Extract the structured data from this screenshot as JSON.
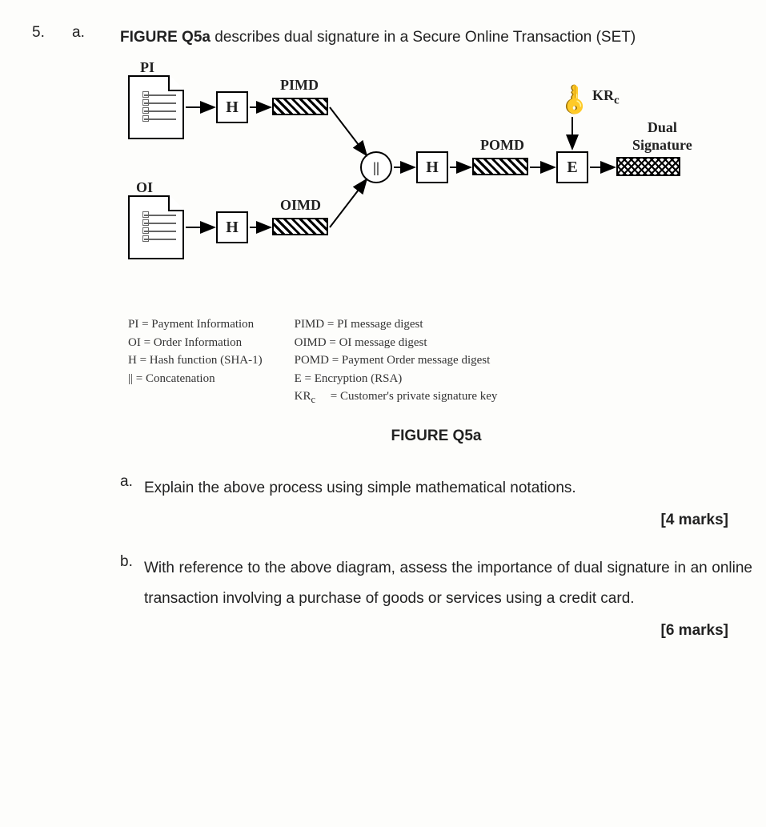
{
  "question_number": "5.",
  "question_letter": "a.",
  "intro_prefix": "FIGURE Q5a",
  "intro_rest": " describes dual signature in a Secure Online Transaction (SET)",
  "labels": {
    "PI": "PI",
    "OI": "OI",
    "PIMD": "PIMD",
    "OIMD": "OIMD",
    "POMD": "POMD",
    "KRc": "KR",
    "KRc_sub": "c",
    "DualSig_l1": "Dual",
    "DualSig_l2": "Signature",
    "H": "H",
    "E": "E",
    "concat": "||"
  },
  "legend1": [
    "PI  = Payment Information",
    "OI  = Order Information",
    "H   = Hash function (SHA-1)",
    "||   = Concatenation"
  ],
  "legend2": [
    "PIMD  = PI message digest",
    "OIMD  = OI message digest",
    "POMD = Payment Order message digest",
    "E         = Encryption (RSA)",
    "KRc      = Customer's private signature key"
  ],
  "legend2_krc_index": 4,
  "fig_caption": "FIGURE Q5a",
  "sub_a_letter": "a.",
  "sub_a_text": "Explain the above process using simple mathematical notations.",
  "sub_a_marks": "[4 marks]",
  "sub_b_letter": "b.",
  "sub_b_text": "With reference to the above diagram, assess the importance of dual signature in an online transaction involving a purchase of goods or services using a credit card.",
  "sub_b_marks": "[6 marks]",
  "key_glyph": "🔑"
}
